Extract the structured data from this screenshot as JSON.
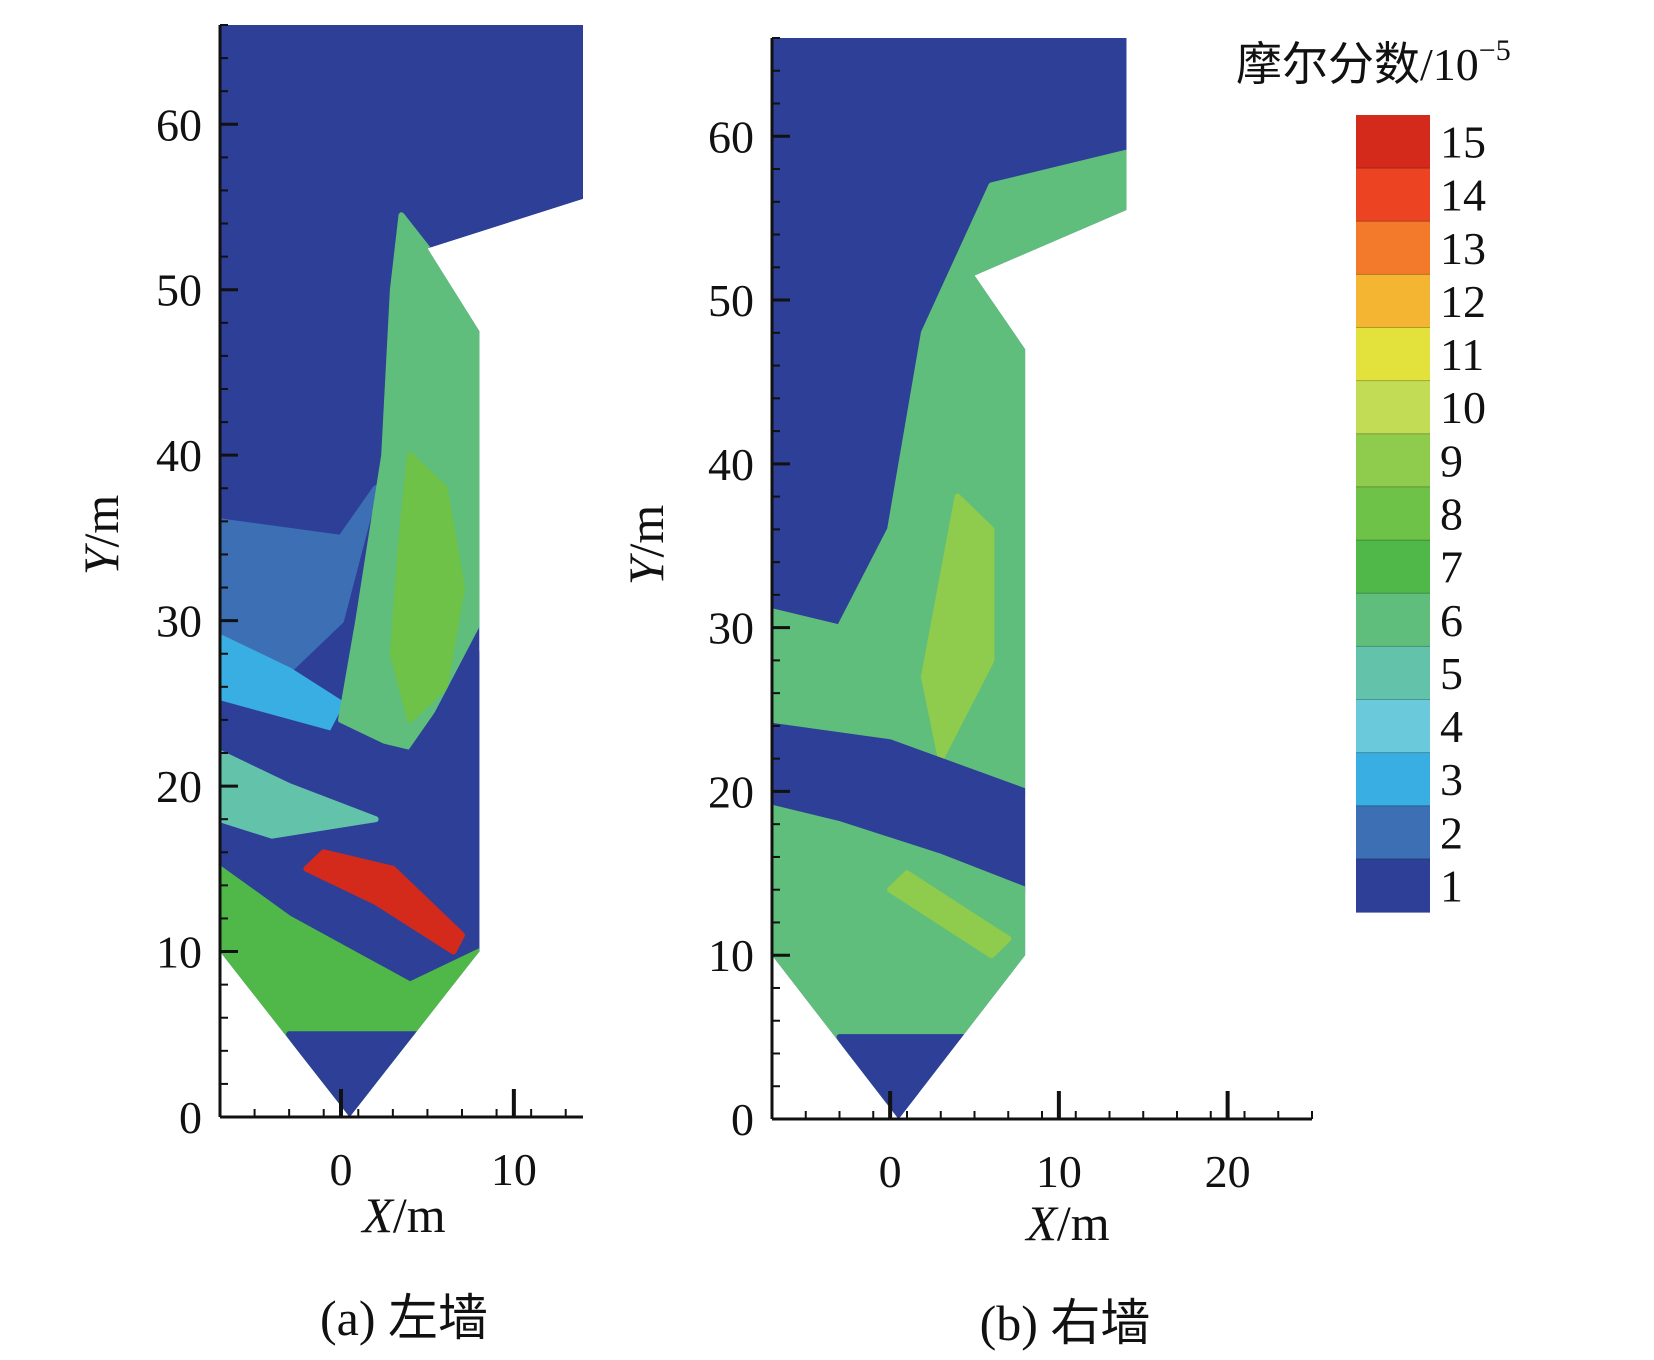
{
  "chart_data": [
    {
      "type": "heatmap",
      "caption": "(a) 左墙",
      "xlabel_var": "X",
      "xlabel_unit": "/m",
      "ylabel_var": "Y",
      "ylabel_unit": "/m",
      "xlim": [
        -7,
        14
      ],
      "ylim": [
        0,
        66
      ],
      "x_ticks": [
        0,
        10
      ],
      "y_ticks": [
        0,
        10,
        20,
        30,
        40,
        50,
        60
      ],
      "boundary": [
        [
          -7,
          66
        ],
        [
          14,
          66
        ],
        [
          14,
          55.5
        ],
        [
          5,
          52.5
        ],
        [
          8,
          47.5
        ],
        [
          8,
          10
        ],
        [
          0.5,
          0
        ],
        [
          -7,
          10
        ]
      ],
      "regions": [
        {
          "level": 1,
          "points": [
            [
              -7,
              66
            ],
            [
              14,
              66
            ],
            [
              14,
              55.5
            ],
            [
              5,
              52.5
            ],
            [
              2,
              38
            ],
            [
              0,
              35
            ],
            [
              -7,
              36
            ]
          ]
        },
        {
          "level": 2,
          "points": [
            [
              -7,
              36
            ],
            [
              0,
              35
            ],
            [
              2,
              38
            ],
            [
              0,
              30
            ],
            [
              -3,
              27
            ],
            [
              -7,
              29
            ]
          ]
        },
        {
          "level": 3,
          "points": [
            [
              -7,
              29
            ],
            [
              -3,
              27
            ],
            [
              0,
              25
            ],
            [
              -1,
              23
            ],
            [
              -7,
              25
            ]
          ]
        },
        {
          "level": 6,
          "points": [
            [
              3.5,
              54.5
            ],
            [
              5,
              52.5
            ],
            [
              8,
              47.5
            ],
            [
              8,
              30
            ],
            [
              4,
              22
            ],
            [
              0,
              24
            ],
            [
              1,
              30
            ],
            [
              2.5,
              40
            ],
            [
              3,
              50
            ]
          ]
        },
        {
          "level": 8,
          "points": [
            [
              4,
              40
            ],
            [
              6,
              38
            ],
            [
              7,
              32
            ],
            [
              6,
              26
            ],
            [
              4,
              24
            ],
            [
              3,
              28
            ],
            [
              3.5,
              35
            ]
          ]
        },
        {
          "level": 1,
          "points": [
            [
              -7,
              25
            ],
            [
              0,
              23
            ],
            [
              4,
              22
            ],
            [
              8,
              28
            ],
            [
              8,
              10
            ],
            [
              4,
              8
            ],
            [
              -3,
              12
            ],
            [
              -7,
              15
            ]
          ]
        },
        {
          "level": 5,
          "points": [
            [
              -7,
              22
            ],
            [
              -3,
              20
            ],
            [
              2,
              18
            ],
            [
              -4,
              17
            ],
            [
              -7,
              18
            ]
          ]
        },
        {
          "level": 7,
          "points": [
            [
              -7,
              15
            ],
            [
              -3,
              12
            ],
            [
              4,
              8
            ],
            [
              8,
              10
            ],
            [
              0.5,
              0
            ],
            [
              -7,
              10
            ]
          ]
        },
        {
          "level": 1,
          "points": [
            [
              -3,
              5
            ],
            [
              5,
              5
            ],
            [
              0.5,
              0
            ]
          ]
        },
        {
          "level": 15,
          "points": [
            [
              -1,
              16
            ],
            [
              3,
              15
            ],
            [
              7,
              11
            ],
            [
              6.5,
              10
            ],
            [
              2,
              13
            ],
            [
              -2,
              15
            ]
          ]
        }
      ]
    },
    {
      "type": "heatmap",
      "caption": "(b) 右墙",
      "xlabel_var": "X",
      "xlabel_unit": "/m",
      "ylabel_var": "Y",
      "ylabel_unit": "/m",
      "xlim": [
        -7,
        25
      ],
      "ylim": [
        0,
        66
      ],
      "x_ticks": [
        0,
        10,
        20
      ],
      "y_ticks": [
        0,
        10,
        20,
        30,
        40,
        50,
        60
      ],
      "boundary": [
        [
          -7,
          66
        ],
        [
          14,
          66
        ],
        [
          14,
          55.5
        ],
        [
          5,
          51.5
        ],
        [
          8,
          47
        ],
        [
          8,
          10
        ],
        [
          0.5,
          0
        ],
        [
          -7,
          10
        ]
      ],
      "regions": [
        {
          "level": 1,
          "points": [
            [
              -7,
              66
            ],
            [
              14,
              66
            ],
            [
              14,
              59
            ],
            [
              6,
              57
            ],
            [
              2,
              48
            ],
            [
              0,
              36
            ],
            [
              -3,
              30
            ],
            [
              -7,
              31
            ]
          ]
        },
        {
          "level": 6,
          "points": [
            [
              -7,
              31
            ],
            [
              -3,
              30
            ],
            [
              0,
              36
            ],
            [
              2,
              48
            ],
            [
              6,
              57
            ],
            [
              14,
              59
            ],
            [
              14,
              55.5
            ],
            [
              5,
              51.5
            ],
            [
              8,
              47
            ],
            [
              8,
              20
            ],
            [
              0,
              23
            ],
            [
              -7,
              24
            ]
          ]
        },
        {
          "level": 9,
          "points": [
            [
              2,
              27
            ],
            [
              4,
              38
            ],
            [
              6,
              36
            ],
            [
              6,
              28
            ],
            [
              3,
              22
            ]
          ]
        },
        {
          "level": 1,
          "points": [
            [
              -7,
              24
            ],
            [
              0,
              23
            ],
            [
              8,
              20
            ],
            [
              8,
              14
            ],
            [
              3,
              16
            ],
            [
              -3,
              18
            ],
            [
              -7,
              19
            ]
          ]
        },
        {
          "level": 6,
          "points": [
            [
              -7,
              19
            ],
            [
              -3,
              18
            ],
            [
              3,
              16
            ],
            [
              8,
              14
            ],
            [
              8,
              10
            ],
            [
              0.5,
              0
            ],
            [
              -7,
              10
            ]
          ]
        },
        {
          "level": 9,
          "points": [
            [
              1,
              15
            ],
            [
              4,
              13
            ],
            [
              7,
              11
            ],
            [
              6,
              10
            ],
            [
              3,
              12
            ],
            [
              0,
              14
            ]
          ]
        },
        {
          "level": 1,
          "points": [
            [
              -3,
              5
            ],
            [
              5,
              5
            ],
            [
              0.5,
              0
            ]
          ]
        }
      ]
    }
  ],
  "colorbar": {
    "title": "摩尔分数/10",
    "title_exp": "−5",
    "levels": [
      15,
      14,
      13,
      12,
      11,
      10,
      9,
      8,
      7,
      6,
      5,
      4,
      3,
      2,
      1
    ],
    "colors": {
      "15": "#d42a1c",
      "14": "#ec4423",
      "13": "#f47a2b",
      "12": "#f4b632",
      "11": "#e3e23c",
      "10": "#c3dc55",
      "9": "#8fcb4c",
      "8": "#6ec247",
      "7": "#50b848",
      "6": "#5fbe7b",
      "5": "#63c2aa",
      "4": "#6ac9da",
      "3": "#39aee2",
      "2": "#3d6fb4",
      "1": "#2d3f97"
    }
  }
}
